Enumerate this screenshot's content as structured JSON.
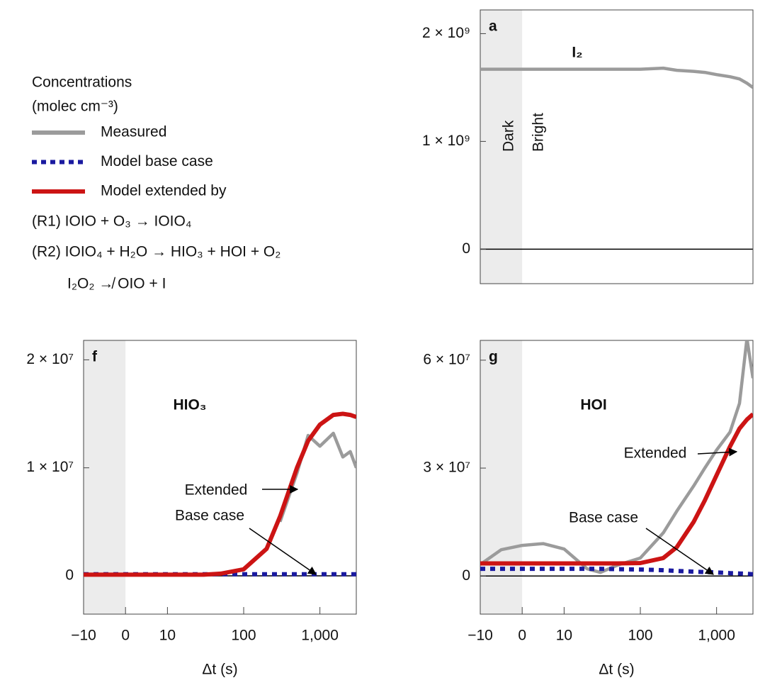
{
  "legend": {
    "title": "Concentrations",
    "subtitle": "(molec cm⁻³)",
    "notes": [
      "(R1) IOIO + O₃ → IOIO₄",
      "(R2) IOIO₄ + H₂O → HIO₃ + HOI + O₂",
      "I₂O₂ ↛ OIO + I"
    ]
  },
  "chart_data": [
    {
      "type": "line",
      "panel": "a",
      "title": "I₂",
      "shade_labels": [
        "Dark",
        "Bright"
      ],
      "xscale": "symlog",
      "xlim": [
        -10,
        3000
      ],
      "ylim": [
        -320000000,
        2220000000
      ],
      "yticks": [
        {
          "value": 0,
          "label": "0"
        },
        {
          "value": 1000000000,
          "label": "1 × 10⁹"
        },
        {
          "value": 2000000000,
          "label": "2 × 10⁹"
        }
      ],
      "x": [
        -10,
        -5,
        0,
        5,
        10,
        20,
        30,
        50,
        100,
        200,
        300,
        500,
        700,
        1000,
        1500,
        2000,
        2500,
        3000
      ],
      "series": [
        {
          "name": "Measured",
          "color": "#9b9b9b",
          "style": "solid",
          "values": [
            1670000000,
            1670000000,
            1670000000,
            1670000000,
            1670000000,
            1670000000,
            1670000000,
            1670000000,
            1670000000,
            1680000000,
            1660000000,
            1650000000,
            1640000000,
            1620000000,
            1600000000,
            1580000000,
            1540000000,
            1500000000
          ]
        }
      ]
    },
    {
      "type": "line",
      "panel": "f",
      "title": "HIO₃",
      "xlabel": "Δt (s)",
      "xscale": "symlog",
      "xlim": [
        -10,
        3000
      ],
      "ylim": [
        -3550000,
        21800000
      ],
      "xticks": [
        {
          "value": -10,
          "label": "−10"
        },
        0,
        10,
        100,
        {
          "value": 1000,
          "label": "1,000"
        }
      ],
      "yticks": [
        {
          "value": 0,
          "label": "0"
        },
        {
          "value": 10000000,
          "label": "1 × 10⁷"
        },
        {
          "value": 20000000,
          "label": "2 × 10⁷"
        }
      ],
      "annotations": [
        "Extended",
        "Base case"
      ],
      "x": [
        -10,
        -5,
        0,
        5,
        10,
        20,
        30,
        50,
        100,
        200,
        300,
        500,
        700,
        1000,
        1500,
        2000,
        2500,
        3000
      ],
      "series": [
        {
          "name": "Measured",
          "color": "#9b9b9b",
          "style": "solid",
          "values": [
            null,
            null,
            null,
            null,
            null,
            null,
            null,
            null,
            null,
            null,
            5000000,
            9500000,
            13000000,
            12000000,
            13200000,
            11000000,
            11500000,
            10000000
          ]
        },
        {
          "name": "Model base case",
          "color": "#1a1aa0",
          "style": "dotted",
          "values": [
            150000,
            150000,
            150000,
            150000,
            150000,
            150000,
            150000,
            150000,
            150000,
            150000,
            150000,
            150000,
            150000,
            150000,
            150000,
            150000,
            150000,
            150000
          ]
        },
        {
          "name": "Model extended by",
          "color": "#cc1414",
          "style": "solid",
          "values": [
            100000,
            100000,
            100000,
            100000,
            100000,
            100000,
            100000,
            200000,
            600000,
            2500000,
            5500000,
            10000000,
            12500000,
            14000000,
            14900000,
            15000000,
            14900000,
            14700000
          ]
        }
      ]
    },
    {
      "type": "line",
      "panel": "g",
      "title": "HOI",
      "xlabel": "Δt (s)",
      "xscale": "symlog",
      "xlim": [
        -10,
        3000
      ],
      "ylim": [
        -10600000,
        65500000
      ],
      "xticks": [
        {
          "value": -10,
          "label": "−10"
        },
        0,
        10,
        100,
        {
          "value": 1000,
          "label": "1,000"
        }
      ],
      "yticks": [
        {
          "value": 0,
          "label": "0"
        },
        {
          "value": 30000000,
          "label": "3 × 10⁷"
        },
        {
          "value": 60000000,
          "label": "6 × 10⁷"
        }
      ],
      "annotations": [
        "Extended",
        "Base case"
      ],
      "x": [
        -10,
        -5,
        0,
        5,
        10,
        20,
        30,
        50,
        100,
        200,
        300,
        500,
        700,
        1000,
        1500,
        2000,
        2500,
        3000
      ],
      "series": [
        {
          "name": "Measured",
          "color": "#9b9b9b",
          "style": "solid",
          "values": [
            3200000,
            7300000,
            8500000,
            9000000,
            7500000,
            2000000,
            1000000,
            3000000,
            5000000,
            12000000,
            18000000,
            25000000,
            30000000,
            35000000,
            40000000,
            48000000,
            66000000,
            55000000
          ]
        },
        {
          "name": "Model base case",
          "color": "#1a1aa0",
          "style": "dotted",
          "values": [
            2000000,
            2000000,
            2000000,
            2000000,
            2000000,
            2000000,
            2000000,
            1900000,
            1800000,
            1600000,
            1400000,
            1200000,
            1100000,
            1000000,
            800000,
            700000,
            600000,
            500000
          ]
        },
        {
          "name": "Model extended by",
          "color": "#cc1414",
          "style": "solid",
          "values": [
            3500000,
            3500000,
            3500000,
            3500000,
            3500000,
            3500000,
            3500000,
            3500000,
            3600000,
            5000000,
            8000000,
            15000000,
            21000000,
            28000000,
            36000000,
            41000000,
            43500000,
            45000000
          ]
        }
      ]
    }
  ]
}
